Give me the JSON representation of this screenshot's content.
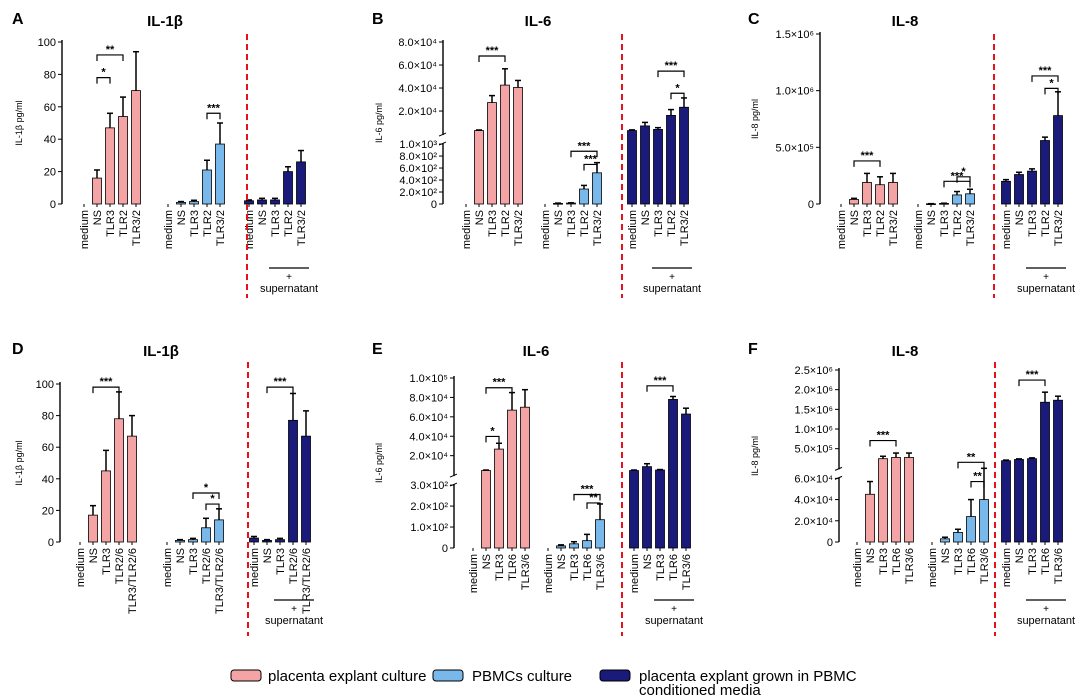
{
  "colors": {
    "placenta": "#f4a4a4",
    "pbmc": "#78b8ea",
    "conditioned": "#1a1a7a",
    "divider": "#e8101a",
    "axis": "#000000"
  },
  "legend": {
    "placenta": "placenta explant culture",
    "pbmc": "PBMCs culture",
    "conditioned_line1": "placenta explant grown in PBMC",
    "conditioned_line2": "conditioned media"
  },
  "chart_data": [
    {
      "panel": "A",
      "title": "IL-1β",
      "ylabel": "IL-1β pg/ml",
      "type": "bar",
      "ylim": [
        0,
        100
      ],
      "yticks": [
        "0",
        "20",
        "40",
        "60",
        "80",
        "100"
      ],
      "groups": [
        {
          "series": "placenta",
          "categories": [
            "medium",
            "NS",
            "TLR3",
            "TLR2",
            "TLR3/2"
          ],
          "values": [
            0,
            16,
            47,
            54,
            70
          ],
          "errors": [
            0,
            5,
            9,
            12,
            24
          ]
        },
        {
          "series": "pbmc",
          "categories": [
            "medium",
            "NS",
            "TLR3",
            "TLR2",
            "TLR3/2"
          ],
          "values": [
            0,
            1,
            1.5,
            21,
            37
          ],
          "errors": [
            0,
            0.5,
            0.8,
            6,
            13
          ]
        },
        {
          "series": "conditioned",
          "categories": [
            "medium",
            "NS",
            "TLR3",
            "TLR2",
            "TLR3/2"
          ],
          "values": [
            2,
            2.5,
            2.5,
            20,
            26
          ],
          "errors": [
            0.5,
            1,
            1,
            3,
            7
          ]
        }
      ],
      "supernatant": "+\nsupernatant",
      "supernatant_l1": "+",
      "supernatant_l2": "supernatant",
      "significance": [
        {
          "label": "*",
          "from": [
            0,
            1
          ],
          "to": [
            0,
            2
          ],
          "bracket_y": 78
        },
        {
          "label": "**",
          "from": [
            0,
            1
          ],
          "to": [
            0,
            3
          ],
          "bracket_y": 92
        },
        {
          "label": "***",
          "from": [
            1,
            3
          ],
          "to": [
            1,
            4
          ],
          "bracket_y": 56
        }
      ]
    },
    {
      "panel": "B",
      "title": "IL-6",
      "ylabel": "IL-6 pg/ml",
      "type": "bar",
      "ylim_lower": [
        0,
        1000
      ],
      "ylim_upper": [
        1000,
        80000
      ],
      "yticks_lower": [
        "2.0×10²",
        "4.0×10²",
        "6.0×10²",
        "8.0×10²",
        "1.0×10³"
      ],
      "yticks_upper": [
        "2.0×10⁴",
        "4.0×10⁴",
        "6.0×10⁴",
        "8.0×10⁴"
      ],
      "yzero": "0",
      "groups": [
        {
          "series": "placenta",
          "categories": [
            "medium",
            "NS",
            "TLR3",
            "TLR2",
            "TLR3/2"
          ],
          "values": [
            0,
            4000,
            28000,
            43000,
            41000
          ],
          "errors": [
            0,
            500,
            6000,
            14000,
            6000
          ]
        },
        {
          "series": "pbmc",
          "categories": [
            "medium",
            "NS",
            "TLR3",
            "TLR2",
            "TLR3/2"
          ],
          "values": [
            0,
            10,
            15,
            250,
            520
          ],
          "errors": [
            0,
            5,
            5,
            60,
            170
          ]
        },
        {
          "series": "conditioned",
          "categories": [
            "medium",
            "NS",
            "TLR3",
            "TLR2",
            "TLR3/2"
          ],
          "values": [
            4000,
            8000,
            5000,
            17000,
            24000
          ],
          "errors": [
            600,
            3000,
            1500,
            5000,
            8000
          ]
        }
      ],
      "supernatant_l1": "+",
      "supernatant_l2": "supernatant",
      "significance": [
        {
          "label": "***",
          "from": [
            0,
            1
          ],
          "to": [
            0,
            3
          ],
          "bracket_y": 68000
        },
        {
          "label": "***",
          "from": [
            1,
            2
          ],
          "to": [
            1,
            4
          ],
          "bracket_y": 880,
          "lower": true
        },
        {
          "label": "***",
          "from": [
            1,
            3
          ],
          "to": [
            1,
            4
          ],
          "bracket_y": 660,
          "lower": true
        },
        {
          "label": "***",
          "from": [
            2,
            2
          ],
          "to": [
            2,
            4
          ],
          "bracket_y": 55000
        },
        {
          "label": "*",
          "from": [
            2,
            3
          ],
          "to": [
            2,
            4
          ],
          "bracket_y": 36000
        }
      ]
    },
    {
      "panel": "C",
      "title": "IL-8",
      "ylabel": "IL-8 pg/ml",
      "type": "bar",
      "ylim": [
        0,
        1500000
      ],
      "yticks": [
        "0",
        "5.0×10⁵",
        "1.0×10⁶",
        "1.5×10⁶"
      ],
      "groups": [
        {
          "series": "placenta",
          "categories": [
            "medium",
            "NS",
            "TLR3",
            "TLR2",
            "TLR3/2"
          ],
          "values": [
            0,
            40000,
            190000,
            170000,
            190000
          ],
          "errors": [
            0,
            10000,
            80000,
            70000,
            80000
          ]
        },
        {
          "series": "pbmc",
          "categories": [
            "medium",
            "NS",
            "TLR3",
            "TLR2",
            "TLR3/2"
          ],
          "values": [
            0,
            2000,
            5000,
            80000,
            90000
          ],
          "errors": [
            0,
            1000,
            2000,
            30000,
            40000
          ]
        },
        {
          "series": "conditioned",
          "categories": [
            "medium",
            "NS",
            "TLR3",
            "TLR2",
            "TLR3/2"
          ],
          "values": [
            200000,
            260000,
            290000,
            560000,
            780000
          ],
          "errors": [
            15000,
            20000,
            20000,
            30000,
            210000
          ]
        }
      ],
      "supernatant_l1": "+",
      "supernatant_l2": "supernatant",
      "significance": [
        {
          "label": "***",
          "from": [
            0,
            1
          ],
          "to": [
            0,
            3
          ],
          "bracket_y": 380000
        },
        {
          "label": "***",
          "from": [
            1,
            2
          ],
          "to": [
            1,
            4
          ],
          "bracket_y": 200000
        },
        {
          "label": "*",
          "from": [
            1,
            3
          ],
          "to": [
            1,
            4
          ],
          "bracket_y": 240000
        },
        {
          "label": "***",
          "from": [
            2,
            2
          ],
          "to": [
            2,
            4
          ],
          "bracket_y": 1130000
        },
        {
          "label": "*",
          "from": [
            2,
            3
          ],
          "to": [
            2,
            4
          ],
          "bracket_y": 1020000
        }
      ]
    },
    {
      "panel": "D",
      "title": "IL-1β",
      "ylabel": "IL-1β pg/ml",
      "type": "bar",
      "ylim": [
        0,
        100
      ],
      "yticks": [
        "0",
        "20",
        "40",
        "60",
        "80",
        "100"
      ],
      "groups": [
        {
          "series": "placenta",
          "categories": [
            "medium",
            "NS",
            "TLR3",
            "TLR2/6",
            "TLR3/TLR2/6"
          ],
          "values": [
            0,
            17,
            45,
            78,
            67
          ],
          "errors": [
            0,
            6,
            13,
            17,
            13
          ]
        },
        {
          "series": "pbmc",
          "categories": [
            "medium",
            "NS",
            "TLR3",
            "TLR2/6",
            "TLR3/TLR2/6"
          ],
          "values": [
            0,
            1,
            1.5,
            9,
            14
          ],
          "errors": [
            0,
            0.5,
            0.8,
            6,
            7
          ]
        },
        {
          "series": "conditioned",
          "categories": [
            "medium",
            "NS",
            "TLR3",
            "TLR2/6",
            "TLR3/TLR2/6"
          ],
          "values": [
            2.5,
            1,
            1.5,
            77,
            67
          ],
          "errors": [
            1,
            0.5,
            0.8,
            17,
            16
          ]
        }
      ],
      "supernatant_l1": "+",
      "supernatant_l2": "supernatant",
      "significance": [
        {
          "label": "***",
          "from": [
            0,
            1
          ],
          "to": [
            0,
            3
          ],
          "bracket_y": 98
        },
        {
          "label": "*",
          "from": [
            1,
            2
          ],
          "to": [
            1,
            4
          ],
          "bracket_y": 31
        },
        {
          "label": "*",
          "from": [
            1,
            3
          ],
          "to": [
            1,
            4
          ],
          "bracket_y": 24
        },
        {
          "label": "***",
          "from": [
            2,
            1
          ],
          "to": [
            2,
            3
          ],
          "bracket_y": 98
        }
      ]
    },
    {
      "panel": "E",
      "title": "IL-6",
      "ylabel": "IL-6 pg/ml",
      "type": "bar",
      "ylim_lower": [
        0,
        300
      ],
      "ylim_upper": [
        300,
        100000
      ],
      "yticks_lower": [
        "0",
        "1.0×10²",
        "2.0×10²",
        "3.0×10²"
      ],
      "yticks_upper": [
        "2.0×10⁴",
        "4.0×10⁴",
        "6.0×10⁴",
        "8.0×10⁴",
        "1.0×10⁵"
      ],
      "groups": [
        {
          "series": "placenta",
          "categories": [
            "medium",
            "NS",
            "TLR3",
            "TLR6",
            "TLR3/6"
          ],
          "values": [
            0,
            5000,
            27000,
            67000,
            70000
          ],
          "errors": [
            0,
            500,
            6000,
            18000,
            18000
          ]
        },
        {
          "series": "pbmc",
          "categories": [
            "medium",
            "NS",
            "TLR3",
            "TLR6",
            "TLR3/6"
          ],
          "values": [
            0,
            10,
            20,
            35,
            135
          ],
          "errors": [
            0,
            5,
            10,
            30,
            75
          ]
        },
        {
          "series": "conditioned",
          "categories": [
            "medium",
            "NS",
            "TLR3",
            "TLR6",
            "TLR3/6"
          ],
          "values": [
            5000,
            9000,
            5500,
            78000,
            63000
          ],
          "errors": [
            500,
            3000,
            500,
            3000,
            6000
          ]
        }
      ],
      "supernatant_l1": "+",
      "supernatant_l2": "supernatant",
      "significance": [
        {
          "label": "*",
          "from": [
            0,
            1
          ],
          "to": [
            0,
            2
          ],
          "bracket_y": 40000
        },
        {
          "label": "***",
          "from": [
            0,
            1
          ],
          "to": [
            0,
            3
          ],
          "bracket_y": 90000
        },
        {
          "label": "***",
          "from": [
            1,
            2
          ],
          "to": [
            1,
            4
          ],
          "bracket_y": 255,
          "lower": true
        },
        {
          "label": "**",
          "from": [
            1,
            3
          ],
          "to": [
            1,
            4
          ],
          "bracket_y": 215,
          "lower": true
        },
        {
          "label": "***",
          "from": [
            2,
            1
          ],
          "to": [
            2,
            3
          ],
          "bracket_y": 92000
        }
      ]
    },
    {
      "panel": "F",
      "title": "IL-8",
      "ylabel": "IL-8 pg/ml",
      "type": "bar",
      "ylim_lower": [
        0,
        60000
      ],
      "ylim_upper": [
        60000,
        2500000
      ],
      "yticks_lower": [
        "0",
        "2.0×10⁴",
        "4.0×10⁴",
        "6.0×10⁴"
      ],
      "yticks_upper": [
        "5.0×10⁵",
        "1.0×10⁶",
        "1.5×10⁶",
        "2.0×10⁶",
        "2.5×10⁶"
      ],
      "groups": [
        {
          "series": "placenta",
          "categories": [
            "medium",
            "NS",
            "TLR3",
            "TLR6",
            "TLR3/6"
          ],
          "values": [
            0,
            45000,
            300000,
            330000,
            330000
          ],
          "errors": [
            0,
            12000,
            60000,
            110000,
            110000
          ]
        },
        {
          "series": "pbmc",
          "categories": [
            "medium",
            "NS",
            "TLR3",
            "TLR6",
            "TLR3/6"
          ],
          "values": [
            0,
            3000,
            9000,
            24000,
            40000
          ],
          "errors": [
            0,
            1500,
            3000,
            16000,
            21000
          ]
        },
        {
          "series": "conditioned",
          "categories": [
            "medium",
            "NS",
            "TLR3",
            "TLR6",
            "TLR3/6"
          ],
          "values": [
            250000,
            280000,
            300000,
            1700000,
            1750000
          ],
          "errors": [
            15000,
            15000,
            20000,
            250000,
            100000
          ]
        }
      ],
      "supernatant_l1": "+",
      "supernatant_l2": "supernatant",
      "significance": [
        {
          "label": "***",
          "from": [
            0,
            1
          ],
          "to": [
            0,
            3
          ],
          "bracket_y": 750000
        },
        {
          "label": "**",
          "from": [
            1,
            2
          ],
          "to": [
            1,
            4
          ],
          "bracket_y": 210000
        },
        {
          "label": "**",
          "from": [
            1,
            3
          ],
          "to": [
            1,
            4
          ],
          "bracket_y": 57000,
          "lower": true
        },
        {
          "label": "***",
          "from": [
            2,
            1
          ],
          "to": [
            2,
            3
          ],
          "bracket_y": 2250000
        }
      ]
    }
  ]
}
